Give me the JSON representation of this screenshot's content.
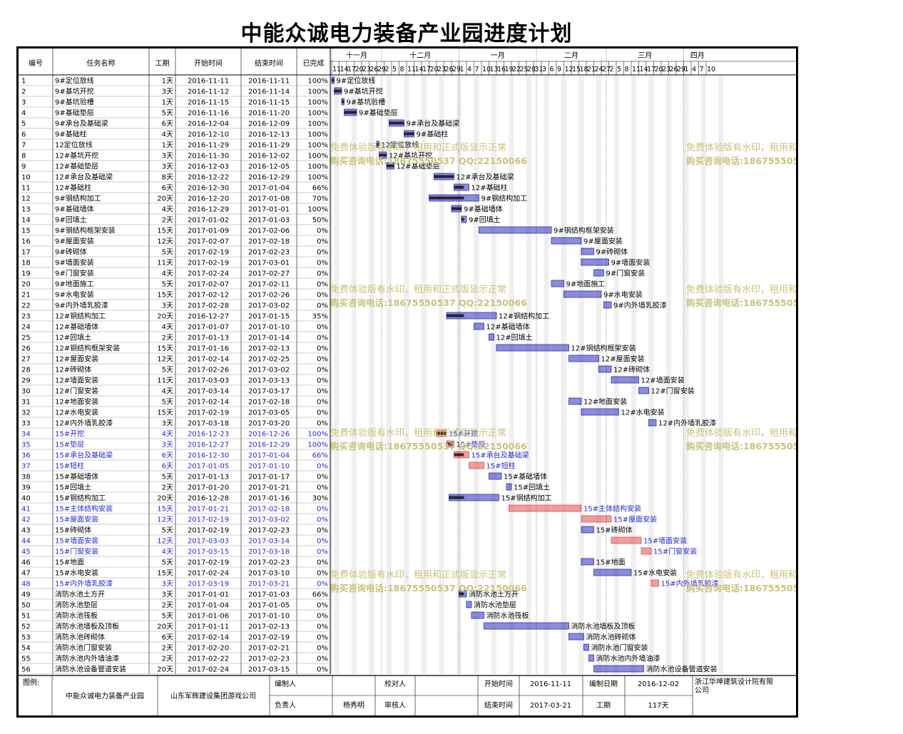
{
  "title": "中能众诚电力装备产业园进度计划",
  "headers": {
    "id": "编号",
    "name": "任务名称",
    "dur": "工期",
    "start": "开始时间",
    "end": "结束时间",
    "done": "已完成"
  },
  "months": [
    "十一月",
    "十二月",
    "一月",
    "二月",
    "三月",
    "四月"
  ],
  "day_ticks": [
    "11",
    "14",
    "17",
    "20",
    "23",
    "26",
    "29",
    "2",
    "5",
    "8",
    "11",
    "14",
    "17",
    "20",
    "23",
    "26",
    "29",
    "1",
    "4",
    "7",
    "10",
    "13",
    "16",
    "19",
    "22",
    "25",
    "28",
    "31",
    "3",
    "6",
    "9",
    "12",
    "15",
    "18",
    "21",
    "24",
    "27",
    "2",
    "5",
    "8",
    "11",
    "14",
    "17",
    "20",
    "23",
    "26",
    "29",
    "1",
    "4",
    "7",
    "10"
  ],
  "watermark": {
    "line1": "免费体验版有水印，租用和正式版显示正常",
    "line2": "购买咨询电话:18675550537 QQ:22150066"
  },
  "colors": {
    "normal": "#2d2fb8",
    "critical": "#e05050",
    "blue_text": "#2a2ad0",
    "watermark": "#c9c27a"
  },
  "footer": {
    "legend_label": "图例:",
    "project": "中能众诚电力装备产业园",
    "company": "山东军辉建设集团游戏公司",
    "editor_label": "编制人",
    "editor": "",
    "checker_label": "校对人",
    "checker": "",
    "owner_label": "负责人",
    "owner": "杨秀明",
    "reviewer_label": "审核人",
    "reviewer": "",
    "start_label": "开始时间",
    "start": "2016-11-11",
    "end_label": "结束时间",
    "end": "2017-03-21",
    "made_label": "编制日期",
    "made": "2016-12-02",
    "dur_label": "工期",
    "dur": "117天",
    "designer": "浙江华坤建筑设计院有限公司"
  },
  "chart_data": {
    "type": "gantt",
    "tasks": [
      {
        "id": "1",
        "name": "9#定位放线",
        "dur": "1天",
        "start": "2016-11-11",
        "end": "2016-11-11",
        "done": "100%"
      },
      {
        "id": "2",
        "name": "9#基坑开挖",
        "dur": "3天",
        "start": "2016-11-12",
        "end": "2016-11-14",
        "done": "100%"
      },
      {
        "id": "3",
        "name": "9#基坑验槽",
        "dur": "1天",
        "start": "2016-11-15",
        "end": "2016-11-15",
        "done": "100%"
      },
      {
        "id": "4",
        "name": "9#基础垫层",
        "dur": "5天",
        "start": "2016-11-16",
        "end": "2016-11-20",
        "done": "100%"
      },
      {
        "id": "5",
        "name": "9#承台及基础梁",
        "dur": "6天",
        "start": "2016-12-04",
        "end": "2016-12-09",
        "done": "100%"
      },
      {
        "id": "6",
        "name": "9#基础柱",
        "dur": "4天",
        "start": "2016-12-10",
        "end": "2016-12-13",
        "done": "100%"
      },
      {
        "id": "7",
        "name": "12定位放线",
        "dur": "1天",
        "start": "2016-11-29",
        "end": "2016-11-29",
        "done": "100%"
      },
      {
        "id": "8",
        "name": "12#基坑开挖",
        "dur": "3天",
        "start": "2016-11-30",
        "end": "2016-12-02",
        "done": "100%"
      },
      {
        "id": "9",
        "name": "12#基础垫层",
        "dur": "3天",
        "start": "2016-12-03",
        "end": "2016-12-05",
        "done": "100%"
      },
      {
        "id": "10",
        "name": "12#承台及基础梁",
        "dur": "8天",
        "start": "2016-12-22",
        "end": "2016-12-29",
        "done": "100%"
      },
      {
        "id": "11",
        "name": "12#基础柱",
        "dur": "6天",
        "start": "2016-12-30",
        "end": "2017-01-04",
        "done": "66%"
      },
      {
        "id": "12",
        "name": "9#钢结构加工",
        "dur": "20天",
        "start": "2016-12-20",
        "end": "2017-01-08",
        "done": "70%"
      },
      {
        "id": "13",
        "name": "9#基础墙体",
        "dur": "4天",
        "start": "2016-12-29",
        "end": "2017-01-01",
        "done": "100%"
      },
      {
        "id": "14",
        "name": "9#回填土",
        "dur": "2天",
        "start": "2017-01-02",
        "end": "2017-01-03",
        "done": "50%"
      },
      {
        "id": "15",
        "name": "9#钢结构框架安装",
        "dur": "15天",
        "start": "2017-01-09",
        "end": "2017-02-06",
        "done": "0%"
      },
      {
        "id": "16",
        "name": "9#屋面安装",
        "dur": "12天",
        "start": "2017-02-07",
        "end": "2017-02-18",
        "done": "0%"
      },
      {
        "id": "17",
        "name": "9#砖砌体",
        "dur": "5天",
        "start": "2017-02-19",
        "end": "2017-02-23",
        "done": "0%"
      },
      {
        "id": "18",
        "name": "9#墙面安装",
        "dur": "11天",
        "start": "2017-02-19",
        "end": "2017-03-01",
        "done": "0%"
      },
      {
        "id": "19",
        "name": "9#门窗安装",
        "dur": "4天",
        "start": "2017-02-24",
        "end": "2017-02-27",
        "done": "0%"
      },
      {
        "id": "20",
        "name": "9#地面施工",
        "dur": "5天",
        "start": "2017-02-07",
        "end": "2017-02-11",
        "done": "0%"
      },
      {
        "id": "21",
        "name": "9#水电安装",
        "dur": "15天",
        "start": "2017-02-12",
        "end": "2017-02-26",
        "done": "0%"
      },
      {
        "id": "22",
        "name": "9#内外墙乳胶漆",
        "dur": "3天",
        "start": "2017-02-28",
        "end": "2017-03-02",
        "done": "0%"
      },
      {
        "id": "23",
        "name": "12#钢结构加工",
        "dur": "20天",
        "start": "2016-12-27",
        "end": "2017-01-15",
        "done": "35%"
      },
      {
        "id": "24",
        "name": "12#基础墙体",
        "dur": "4天",
        "start": "2017-01-07",
        "end": "2017-01-10",
        "done": "0%"
      },
      {
        "id": "25",
        "name": "12#回填土",
        "dur": "2天",
        "start": "2017-01-13",
        "end": "2017-01-14",
        "done": "0%"
      },
      {
        "id": "26",
        "name": "12#钢结构框架安装",
        "dur": "15天",
        "start": "2017-01-16",
        "end": "2017-02-13",
        "done": "0%"
      },
      {
        "id": "27",
        "name": "12#屋面安装",
        "dur": "12天",
        "start": "2017-02-14",
        "end": "2017-02-25",
        "done": "0%"
      },
      {
        "id": "28",
        "name": "12#砖砌体",
        "dur": "5天",
        "start": "2017-02-26",
        "end": "2017-03-02",
        "done": "0%"
      },
      {
        "id": "29",
        "name": "12#墙面安装",
        "dur": "11天",
        "start": "2017-03-03",
        "end": "2017-03-13",
        "done": "0%"
      },
      {
        "id": "30",
        "name": "12#门窗安装",
        "dur": "4天",
        "start": "2017-03-14",
        "end": "2017-03-17",
        "done": "0%"
      },
      {
        "id": "31",
        "name": "12#地面安装",
        "dur": "5天",
        "start": "2017-02-14",
        "end": "2017-02-18",
        "done": "0%"
      },
      {
        "id": "32",
        "name": "12#水电安装",
        "dur": "15天",
        "start": "2017-02-19",
        "end": "2017-03-05",
        "done": "0%"
      },
      {
        "id": "33",
        "name": "12#内外墙乳胶漆",
        "dur": "3天",
        "start": "2017-03-18",
        "end": "2017-03-20",
        "done": "0%"
      },
      {
        "id": "34",
        "name": "15#开挖",
        "dur": "4天",
        "start": "2016-12-23",
        "end": "2016-12-26",
        "done": "100%",
        "blue": true,
        "crit": true
      },
      {
        "id": "35",
        "name": "15#垫层",
        "dur": "3天",
        "start": "2016-12-27",
        "end": "2016-12-29",
        "done": "100%",
        "blue": true,
        "crit": true
      },
      {
        "id": "36",
        "name": "15#承台及基础梁",
        "dur": "6天",
        "start": "2016-12-30",
        "end": "2017-01-04",
        "done": "66%",
        "blue": true,
        "crit": true
      },
      {
        "id": "37",
        "name": "15#短柱",
        "dur": "6天",
        "start": "2017-01-05",
        "end": "2017-01-10",
        "done": "0%",
        "blue": true,
        "crit": true
      },
      {
        "id": "38",
        "name": "15#基础墙体",
        "dur": "5天",
        "start": "2017-01-13",
        "end": "2017-01-17",
        "done": "0%"
      },
      {
        "id": "39",
        "name": "15#回填土",
        "dur": "2天",
        "start": "2017-01-20",
        "end": "2017-01-21",
        "done": "0%"
      },
      {
        "id": "40",
        "name": "15#钢结构加工",
        "dur": "20天",
        "start": "2016-12-28",
        "end": "2017-01-16",
        "done": "30%"
      },
      {
        "id": "41",
        "name": "15#主体结构安装",
        "dur": "15天",
        "start": "2017-01-21",
        "end": "2017-02-18",
        "done": "0%",
        "blue": true,
        "crit": true
      },
      {
        "id": "42",
        "name": "15#屋面安装",
        "dur": "12天",
        "start": "2017-02-19",
        "end": "2017-03-02",
        "done": "0%",
        "blue": true,
        "crit": true
      },
      {
        "id": "43",
        "name": "15#砖砌体",
        "dur": "5天",
        "start": "2017-02-19",
        "end": "2017-02-23",
        "done": "0%"
      },
      {
        "id": "44",
        "name": "15#墙面安装",
        "dur": "12天",
        "start": "2017-03-03",
        "end": "2017-03-14",
        "done": "0%",
        "blue": true,
        "crit": true
      },
      {
        "id": "45",
        "name": "15#门窗安装",
        "dur": "4天",
        "start": "2017-03-15",
        "end": "2017-03-18",
        "done": "0%",
        "blue": true,
        "crit": true
      },
      {
        "id": "46",
        "name": "15#地面",
        "dur": "5天",
        "start": "2017-02-19",
        "end": "2017-02-23",
        "done": "0%"
      },
      {
        "id": "47",
        "name": "15#水电安装",
        "dur": "15天",
        "start": "2017-02-24",
        "end": "2017-03-10",
        "done": "0%"
      },
      {
        "id": "48",
        "name": "15#内外墙乳胶漆",
        "dur": "3天",
        "start": "2017-03-19",
        "end": "2017-03-21",
        "done": "0%",
        "blue": true,
        "crit": true
      },
      {
        "id": "49",
        "name": "消防水池土方开",
        "dur": "3天",
        "start": "2017-01-01",
        "end": "2017-01-03",
        "done": "66%"
      },
      {
        "id": "50",
        "name": "消防水池垫层",
        "dur": "2天",
        "start": "2017-01-04",
        "end": "2017-01-05",
        "done": "0%"
      },
      {
        "id": "51",
        "name": "消防水池筏板",
        "dur": "5天",
        "start": "2017-01-06",
        "end": "2017-01-10",
        "done": "0%"
      },
      {
        "id": "52",
        "name": "消防水池墙板及顶板",
        "dur": "20天",
        "start": "2017-01-11",
        "end": "2017-02-13",
        "done": "0%"
      },
      {
        "id": "53",
        "name": "消防水池砖砌体",
        "dur": "6天",
        "start": "2017-02-14",
        "end": "2017-02-19",
        "done": "0%"
      },
      {
        "id": "54",
        "name": "消防水池门窗安装",
        "dur": "2天",
        "start": "2017-02-20",
        "end": "2017-02-21",
        "done": "0%"
      },
      {
        "id": "55",
        "name": "消防水池内外墙油漆",
        "dur": "2天",
        "start": "2017-02-22",
        "end": "2017-02-23",
        "done": "0%"
      },
      {
        "id": "56",
        "name": "消防水池设备管道安装",
        "dur": "20天",
        "start": "2017-02-24",
        "end": "2017-03-15",
        "done": "0%"
      }
    ]
  }
}
